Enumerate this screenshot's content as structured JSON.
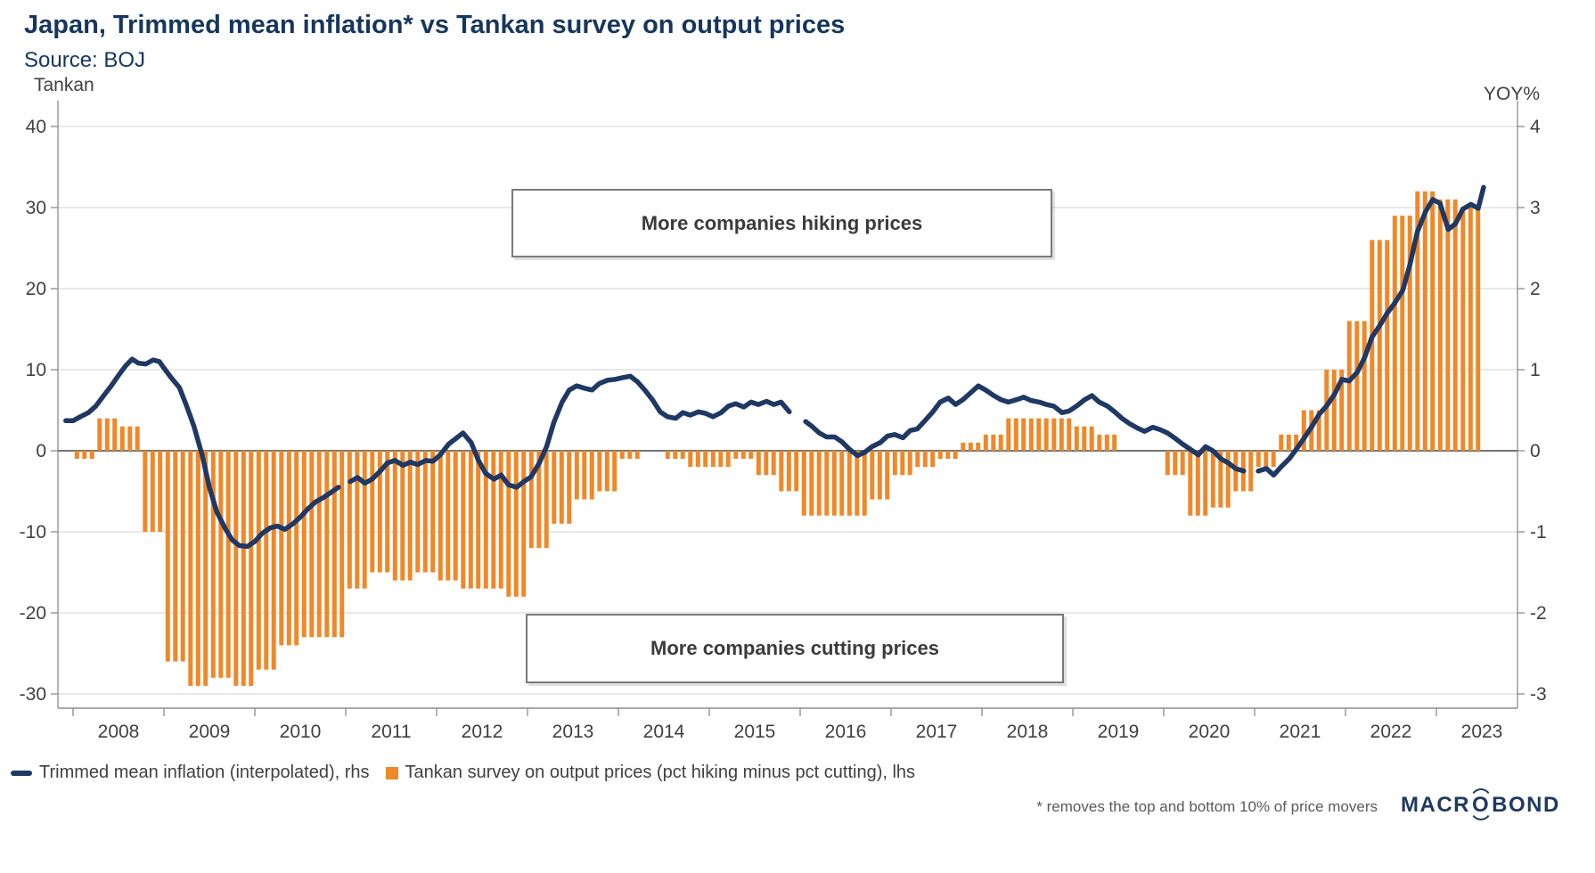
{
  "header": {
    "title": "Japan, Trimmed mean inflation* vs Tankan survey on output prices",
    "subtitle": "Source: BOJ"
  },
  "axes": {
    "left_unit": "Tankan",
    "right_unit": "YOY%",
    "left_ticks": [
      40,
      30,
      20,
      10,
      0,
      -10,
      -20,
      -30
    ],
    "right_ticks": [
      4,
      3,
      2,
      1,
      0,
      -1,
      -2,
      -3
    ],
    "year_labels": [
      "2008",
      "2009",
      "2010",
      "2011",
      "2012",
      "2013",
      "2014",
      "2015",
      "2016",
      "2017",
      "2018",
      "2019",
      "2020",
      "2021",
      "2022",
      "2023"
    ]
  },
  "annotations": {
    "hiking": "More companies hiking prices",
    "cutting": "More companies cutting prices"
  },
  "legend": {
    "line_label": "Trimmed mean inflation (interpolated), rhs",
    "bar_label": "Tankan survey on output prices (pct hiking minus pct cutting), lhs"
  },
  "footnote": "* removes the top and bottom 10% of price movers",
  "logo": {
    "pre": "MACR",
    "o": "O",
    "post": "BOND"
  },
  "colors": {
    "navy_line": "#1F3864",
    "title_navy": "#17365D",
    "bar_orange": "#EF8829",
    "grid": "#D9D9D9",
    "zero_line": "#737373",
    "axis_line": "#8C8C8C",
    "tick_text": "#404040"
  },
  "chart_data": {
    "type": [
      "bar",
      "line"
    ],
    "title": "Japan, Trimmed mean inflation* vs Tankan survey on output prices",
    "left_axis": {
      "label": "Tankan",
      "range": [
        -33,
        42
      ],
      "gridlines": [
        40,
        30,
        20,
        10,
        0,
        -10,
        -20,
        -30
      ]
    },
    "right_axis": {
      "label": "YOY%",
      "range": [
        -3.3,
        4.2
      ],
      "gridlines": [
        4,
        3,
        2,
        1,
        0,
        -1,
        -2,
        -3
      ]
    },
    "x_axis": {
      "start_year": 2008,
      "end_year": 2023.5,
      "tick_years": [
        2008,
        2009,
        2010,
        2011,
        2012,
        2013,
        2014,
        2015,
        2016,
        2017,
        2018,
        2019,
        2020,
        2021,
        2022,
        2023
      ]
    },
    "bar_series": {
      "name": "Tankan survey on output prices (pct hiking minus pct cutting), lhs",
      "axis": "left",
      "frequency": "quarterly",
      "start": "2008Q1",
      "note": "each quarterly value drawn as 3 thin monthly bars",
      "values": [
        -1,
        4,
        3,
        -10,
        -26,
        -29,
        -28,
        -29,
        -27,
        -24,
        -23,
        -23,
        -17,
        -15,
        -16,
        -15,
        -16,
        -17,
        -17,
        -18,
        -12,
        -9,
        -6,
        -5,
        -1,
        0,
        -1,
        -2,
        -2,
        -1,
        -3,
        -5,
        -8,
        -8,
        -8,
        -6,
        -3,
        -2,
        -1,
        1,
        2,
        4,
        4,
        4,
        3,
        2,
        0,
        0,
        -3,
        -8,
        -7,
        -5,
        -2,
        2,
        5,
        10,
        16,
        26,
        29,
        32,
        31,
        30
      ]
    },
    "line_series": {
      "name": "Trimmed mean inflation (interpolated), rhs",
      "axis": "right",
      "note": "null entries are breaks in the line (CPI rebasing gaps)",
      "points": [
        [
          2007.92,
          0.37
        ],
        [
          2008.0,
          0.37
        ],
        [
          2008.08,
          0.42
        ],
        [
          2008.17,
          0.47
        ],
        [
          2008.25,
          0.55
        ],
        [
          2008.33,
          0.67
        ],
        [
          2008.42,
          0.8
        ],
        [
          2008.5,
          0.93
        ],
        [
          2008.58,
          1.05
        ],
        [
          2008.65,
          1.13
        ],
        [
          2008.72,
          1.08
        ],
        [
          2008.8,
          1.07
        ],
        [
          2008.88,
          1.12
        ],
        [
          2008.95,
          1.1
        ],
        [
          2009.0,
          1.02
        ],
        [
          2009.08,
          0.9
        ],
        [
          2009.17,
          0.78
        ],
        [
          2009.25,
          0.55
        ],
        [
          2009.33,
          0.3
        ],
        [
          2009.42,
          -0.05
        ],
        [
          2009.5,
          -0.45
        ],
        [
          2009.58,
          -0.75
        ],
        [
          2009.67,
          -0.95
        ],
        [
          2009.75,
          -1.1
        ],
        [
          2009.83,
          -1.17
        ],
        [
          2009.92,
          -1.18
        ],
        [
          2010.0,
          -1.12
        ],
        [
          2010.08,
          -1.02
        ],
        [
          2010.17,
          -0.95
        ],
        [
          2010.25,
          -0.93
        ],
        [
          2010.33,
          -0.97
        ],
        [
          2010.42,
          -0.9
        ],
        [
          2010.5,
          -0.82
        ],
        [
          2010.58,
          -0.72
        ],
        [
          2010.67,
          -0.63
        ],
        [
          2010.75,
          -0.58
        ],
        [
          2010.83,
          -0.52
        ],
        [
          2010.92,
          -0.45
        ],
        null,
        [
          2011.05,
          -0.38
        ],
        [
          2011.13,
          -0.33
        ],
        [
          2011.21,
          -0.4
        ],
        [
          2011.29,
          -0.35
        ],
        [
          2011.38,
          -0.25
        ],
        [
          2011.46,
          -0.15
        ],
        [
          2011.54,
          -0.12
        ],
        [
          2011.63,
          -0.18
        ],
        [
          2011.71,
          -0.14
        ],
        [
          2011.79,
          -0.17
        ],
        [
          2011.88,
          -0.12
        ],
        [
          2011.96,
          -0.13
        ],
        [
          2012.04,
          -0.05
        ],
        [
          2012.13,
          0.08
        ],
        [
          2012.21,
          0.15
        ],
        [
          2012.29,
          0.22
        ],
        [
          2012.38,
          0.1
        ],
        [
          2012.46,
          -0.12
        ],
        [
          2012.54,
          -0.28
        ],
        [
          2012.63,
          -0.35
        ],
        [
          2012.71,
          -0.3
        ],
        [
          2012.79,
          -0.42
        ],
        [
          2012.88,
          -0.45
        ],
        [
          2012.96,
          -0.38
        ],
        [
          2013.04,
          -0.32
        ],
        [
          2013.13,
          -0.15
        ],
        [
          2013.21,
          0.05
        ],
        [
          2013.29,
          0.35
        ],
        [
          2013.38,
          0.6
        ],
        [
          2013.46,
          0.75
        ],
        [
          2013.54,
          0.8
        ],
        [
          2013.63,
          0.77
        ],
        [
          2013.71,
          0.75
        ],
        [
          2013.79,
          0.83
        ],
        [
          2013.88,
          0.87
        ],
        [
          2013.96,
          0.88
        ],
        [
          2014.04,
          0.9
        ],
        [
          2014.13,
          0.92
        ],
        [
          2014.21,
          0.85
        ],
        [
          2014.29,
          0.75
        ],
        [
          2014.38,
          0.62
        ],
        [
          2014.46,
          0.48
        ],
        [
          2014.54,
          0.42
        ],
        [
          2014.63,
          0.4
        ],
        [
          2014.71,
          0.47
        ],
        [
          2014.79,
          0.44
        ],
        [
          2014.88,
          0.48
        ],
        [
          2014.96,
          0.46
        ],
        [
          2015.04,
          0.42
        ],
        [
          2015.13,
          0.47
        ],
        [
          2015.21,
          0.55
        ],
        [
          2015.29,
          0.58
        ],
        [
          2015.38,
          0.54
        ],
        [
          2015.46,
          0.6
        ],
        [
          2015.54,
          0.57
        ],
        [
          2015.63,
          0.61
        ],
        [
          2015.71,
          0.57
        ],
        [
          2015.79,
          0.6
        ],
        [
          2015.88,
          0.48
        ],
        null,
        [
          2016.06,
          0.36
        ],
        [
          2016.13,
          0.3
        ],
        [
          2016.21,
          0.22
        ],
        [
          2016.29,
          0.17
        ],
        [
          2016.38,
          0.17
        ],
        [
          2016.46,
          0.11
        ],
        [
          2016.54,
          0.02
        ],
        [
          2016.63,
          -0.06
        ],
        [
          2016.71,
          -0.02
        ],
        [
          2016.79,
          0.05
        ],
        [
          2016.88,
          0.1
        ],
        [
          2016.96,
          0.18
        ],
        [
          2017.04,
          0.2
        ],
        [
          2017.13,
          0.16
        ],
        [
          2017.21,
          0.25
        ],
        [
          2017.29,
          0.27
        ],
        [
          2017.38,
          0.38
        ],
        [
          2017.46,
          0.48
        ],
        [
          2017.54,
          0.6
        ],
        [
          2017.63,
          0.65
        ],
        [
          2017.71,
          0.57
        ],
        [
          2017.79,
          0.63
        ],
        [
          2017.88,
          0.72
        ],
        [
          2017.96,
          0.8
        ],
        [
          2018.04,
          0.75
        ],
        [
          2018.13,
          0.68
        ],
        [
          2018.21,
          0.63
        ],
        [
          2018.29,
          0.6
        ],
        [
          2018.38,
          0.63
        ],
        [
          2018.46,
          0.66
        ],
        [
          2018.54,
          0.62
        ],
        [
          2018.63,
          0.6
        ],
        [
          2018.71,
          0.57
        ],
        [
          2018.79,
          0.55
        ],
        [
          2018.88,
          0.47
        ],
        [
          2018.96,
          0.49
        ],
        [
          2019.04,
          0.55
        ],
        [
          2019.13,
          0.63
        ],
        [
          2019.21,
          0.68
        ],
        [
          2019.29,
          0.6
        ],
        [
          2019.38,
          0.55
        ],
        [
          2019.46,
          0.48
        ],
        [
          2019.54,
          0.4
        ],
        [
          2019.63,
          0.33
        ],
        [
          2019.71,
          0.28
        ],
        [
          2019.79,
          0.24
        ],
        [
          2019.88,
          0.29
        ],
        [
          2019.96,
          0.26
        ],
        [
          2020.04,
          0.22
        ],
        [
          2020.13,
          0.15
        ],
        [
          2020.21,
          0.08
        ],
        [
          2020.29,
          0.02
        ],
        [
          2020.38,
          -0.05
        ],
        [
          2020.46,
          0.05
        ],
        [
          2020.54,
          0.0
        ],
        [
          2020.63,
          -0.1
        ],
        [
          2020.71,
          -0.15
        ],
        [
          2020.79,
          -0.22
        ],
        [
          2020.88,
          -0.25
        ],
        null,
        [
          2021.04,
          -0.25
        ],
        [
          2021.13,
          -0.22
        ],
        [
          2021.21,
          -0.3
        ],
        [
          2021.29,
          -0.2
        ],
        [
          2021.38,
          -0.1
        ],
        [
          2021.46,
          0.02
        ],
        [
          2021.54,
          0.15
        ],
        [
          2021.63,
          0.3
        ],
        [
          2021.71,
          0.45
        ],
        [
          2021.79,
          0.55
        ],
        [
          2021.88,
          0.7
        ],
        [
          2021.96,
          0.88
        ],
        [
          2022.04,
          0.86
        ],
        [
          2022.13,
          0.97
        ],
        [
          2022.21,
          1.15
        ],
        [
          2022.29,
          1.4
        ],
        [
          2022.38,
          1.55
        ],
        [
          2022.46,
          1.7
        ],
        [
          2022.54,
          1.82
        ],
        [
          2022.63,
          1.98
        ],
        [
          2022.71,
          2.3
        ],
        [
          2022.79,
          2.7
        ],
        [
          2022.88,
          2.95
        ],
        [
          2022.96,
          3.1
        ],
        [
          2023.04,
          3.05
        ],
        [
          2023.13,
          2.73
        ],
        [
          2023.21,
          2.8
        ],
        [
          2023.29,
          2.98
        ],
        [
          2023.38,
          3.04
        ],
        [
          2023.46,
          2.99
        ],
        [
          2023.52,
          3.25
        ]
      ]
    },
    "annotations": [
      "More companies hiking prices",
      "More companies cutting prices"
    ],
    "legend_position": "bottom-left",
    "grid": true
  }
}
